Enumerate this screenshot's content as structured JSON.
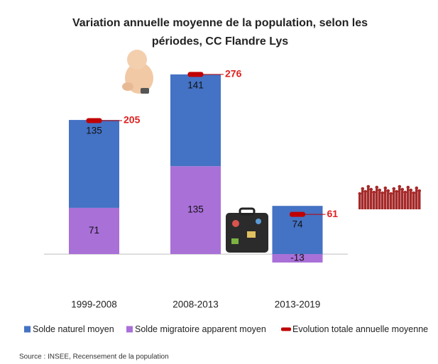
{
  "chart_data": {
    "type": "bar",
    "stacked": true,
    "title": "Variation annuelle moyenne de la population, selon les périodes, CC Flandre Lys",
    "categories": [
      "1999-2008",
      "2008-2013",
      "2013-2019"
    ],
    "series": [
      {
        "name": "Solde naturel moyen",
        "color": "#4472c4",
        "values": [
          135,
          141,
          74
        ]
      },
      {
        "name": "Solde migratoire apparent moyen",
        "color": "#a970d8",
        "values": [
          71,
          135,
          -13
        ]
      },
      {
        "name": "Evolution totale annuelle moyenne",
        "color": "#c00000",
        "type": "marker",
        "values": [
          205,
          276,
          61
        ]
      }
    ],
    "ylim": [
      -25,
      290
    ],
    "source": "Source : INSEE, Recensement de la population"
  }
}
